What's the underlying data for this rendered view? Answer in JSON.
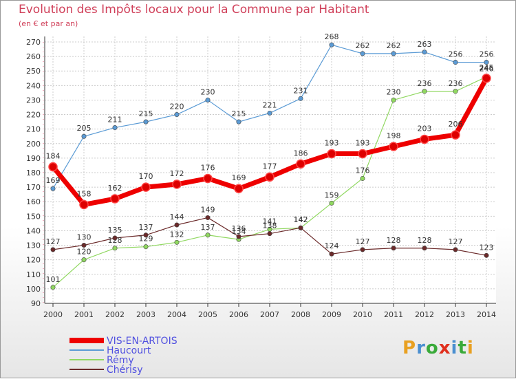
{
  "header": {
    "title": "Evolution des Impôts locaux pour la Commune par Habitant",
    "subtitle": "(en € et par an)"
  },
  "logo": {
    "text": "Proxiti",
    "colors": [
      "#e8a020",
      "#4a8fd0",
      "#3aaa3a",
      "#e0301e",
      "#4a8fd0",
      "#3aaa3a",
      "#e8a020"
    ]
  },
  "chart_data": {
    "type": "line",
    "x": [
      2000,
      2001,
      2002,
      2003,
      2004,
      2005,
      2006,
      2007,
      2008,
      2009,
      2010,
      2011,
      2012,
      2013,
      2014
    ],
    "ylim": [
      90,
      270
    ],
    "yticks": [
      90,
      100,
      110,
      120,
      130,
      140,
      150,
      160,
      170,
      180,
      190,
      200,
      210,
      220,
      230,
      240,
      250,
      260,
      270
    ],
    "grid": true,
    "legend_position": "bottom-left",
    "series": [
      {
        "name": "Haucourt",
        "color": "#5b9bd5",
        "values": [
          169,
          205,
          211,
          215,
          220,
          230,
          215,
          221,
          231,
          268,
          262,
          262,
          263,
          256,
          256
        ]
      },
      {
        "name": "Rémy",
        "color": "#90d860",
        "values": [
          101,
          120,
          128,
          129,
          132,
          137,
          134,
          141,
          142,
          159,
          176,
          230,
          236,
          236,
          246
        ]
      },
      {
        "name": "Chérisy",
        "color": "#6b2a2a",
        "values": [
          127,
          130,
          135,
          137,
          144,
          149,
          136,
          138,
          142,
          124,
          127,
          128,
          128,
          127,
          123
        ]
      },
      {
        "name": "VIS-EN-ARTOIS",
        "color": "#ee0000",
        "values": [
          184,
          158,
          162,
          170,
          172,
          176,
          169,
          177,
          186,
          193,
          193,
          198,
          203,
          206,
          245
        ]
      }
    ],
    "legend": [
      {
        "name": "VIS-EN-ARTOIS",
        "color": "#ee0000",
        "label_color": "#5050e0"
      },
      {
        "name": "Haucourt",
        "color": "#5b9bd5",
        "label_color": "#5050e0"
      },
      {
        "name": "Rémy",
        "color": "#90d860",
        "label_color": "#5050e0"
      },
      {
        "name": "Chérisy",
        "color": "#6b2a2a",
        "label_color": "#5050e0"
      }
    ]
  }
}
